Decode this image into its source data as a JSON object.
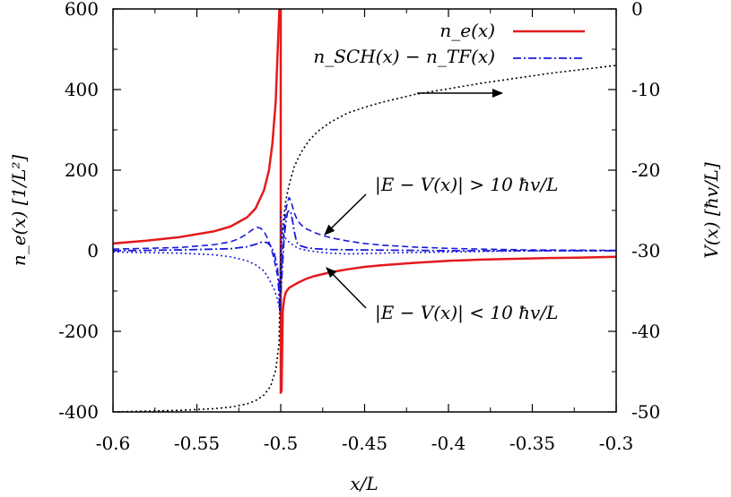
{
  "chart_data": {
    "type": "line",
    "x_axis": {
      "label": "x/L",
      "range": [
        -0.6,
        -0.3
      ],
      "ticks": [
        -0.6,
        -0.55,
        -0.5,
        -0.45,
        -0.4,
        -0.35,
        -0.3
      ],
      "tick_labels": [
        "-0.6",
        "-0.55",
        "-0.5",
        "-0.45",
        "-0.4",
        "-0.35",
        "-0.3"
      ]
    },
    "y_left_axis": {
      "label": "n_e(x) [1/L²]",
      "range": [
        -400,
        600
      ],
      "ticks": [
        -400,
        -200,
        0,
        200,
        400,
        600
      ],
      "tick_labels": [
        "-400",
        "-200",
        "0",
        "200",
        "400",
        "600"
      ]
    },
    "y_right_axis": {
      "label": "V(x) [ħv/L]",
      "range": [
        -50,
        0
      ],
      "ticks": [
        -50,
        -40,
        -30,
        -20,
        -10,
        0
      ],
      "tick_labels": [
        "-50",
        "-40",
        "-30",
        "-20",
        "-10",
        "0"
      ]
    },
    "grid": false,
    "legend_position": "top-right",
    "legend": [
      {
        "label": "n_e(x)",
        "color": "#e41a1c",
        "style": "solid"
      },
      {
        "label": "n_SCH(x) − n_TF(x)",
        "color": "#1a1adb",
        "style": "dash-dot"
      }
    ],
    "annotations": [
      {
        "text": "|E − V(x)| > 10 ħv/L"
      },
      {
        "text": "|E − V(x)| < 10 ħv/L"
      }
    ],
    "series": [
      {
        "name": "n_e(x)",
        "axis": "left",
        "color": "#e41a1c",
        "style": "solid",
        "segments": [
          {
            "x": [
              -0.6,
              -0.58,
              -0.56,
              -0.54,
              -0.53,
              -0.52,
              -0.515,
              -0.51,
              -0.507,
              -0.505,
              -0.503,
              -0.5015,
              -0.5008
            ],
            "y": [
              18,
              25,
              34,
              48,
              60,
              83,
              105,
              150,
              200,
              265,
              370,
              530,
              600
            ]
          },
          {
            "x": [
              -0.4995,
              -0.4988,
              -0.498,
              -0.497,
              -0.495,
              -0.49,
              -0.485,
              -0.48,
              -0.47,
              -0.46,
              -0.45,
              -0.44,
              -0.42,
              -0.4,
              -0.38,
              -0.36,
              -0.34,
              -0.32,
              -0.3
            ],
            "y": [
              -350,
              -150,
              -120,
              -103,
              -92,
              -80,
              -70,
              -63,
              -53,
              -46,
              -40,
              -36,
              -30,
              -25,
              -22,
              -20,
              -18,
              -17,
              -15
            ]
          }
        ],
        "spike": {
          "x": -0.5,
          "y_low": -355,
          "y_high": 600
        }
      },
      {
        "name": "n_SCH(x) − n_TF(x)",
        "axis": "left",
        "color": "#1a1adb",
        "style": "dash-dot",
        "x": [
          -0.6,
          -0.56,
          -0.53,
          -0.52,
          -0.515,
          -0.511,
          -0.508,
          -0.506,
          -0.504,
          -0.502,
          -0.5005,
          -0.499,
          -0.498,
          -0.497,
          -0.496,
          -0.495,
          -0.494,
          -0.493,
          -0.492,
          -0.491,
          -0.49,
          -0.488,
          -0.485,
          -0.48,
          -0.47,
          -0.45,
          -0.4,
          -0.35,
          -0.3
        ],
        "y": [
          0,
          2,
          5,
          10,
          16,
          22,
          20,
          12,
          -5,
          -40,
          -150,
          -40,
          30,
          70,
          95,
          100,
          95,
          75,
          50,
          30,
          18,
          12,
          8,
          5,
          3,
          2,
          0,
          0,
          0
        ]
      },
      {
        "name": "|E − V(x)| > 10 ħv/L",
        "axis": "left",
        "color": "#1a1adb",
        "style": "dashed",
        "x": [
          -0.6,
          -0.56,
          -0.54,
          -0.53,
          -0.525,
          -0.52,
          -0.517,
          -0.514,
          -0.512,
          -0.51,
          -0.508,
          -0.506,
          -0.504,
          -0.502,
          -0.5,
          -0.4995,
          -0.498,
          -0.497,
          -0.496,
          -0.495,
          -0.494,
          -0.493,
          -0.492,
          -0.49,
          -0.488,
          -0.485,
          -0.48,
          -0.475,
          -0.47,
          -0.46,
          -0.45,
          -0.44,
          -0.42,
          -0.4,
          -0.38,
          -0.35,
          -0.3
        ],
        "y": [
          4,
          8,
          15,
          22,
          30,
          42,
          52,
          58,
          56,
          48,
          32,
          10,
          -20,
          -60,
          -95,
          -40,
          60,
          100,
          120,
          132,
          125,
          110,
          95,
          75,
          65,
          55,
          45,
          38,
          32,
          24,
          18,
          14,
          9,
          6,
          4,
          2,
          1
        ]
      },
      {
        "name": "|E − V(x)| < 10 ħv/L",
        "axis": "left",
        "color": "#1a1adb",
        "style": "dotted",
        "x": [
          -0.6,
          -0.56,
          -0.54,
          -0.53,
          -0.52,
          -0.515,
          -0.51,
          -0.507,
          -0.504,
          -0.502,
          -0.5005,
          -0.5,
          -0.4995,
          -0.499,
          -0.498,
          -0.496,
          -0.494,
          -0.492,
          -0.49,
          -0.487,
          -0.483,
          -0.478,
          -0.47,
          -0.46,
          -0.45,
          -0.43,
          -0.4,
          -0.37,
          -0.34,
          -0.3
        ],
        "y": [
          -3,
          -6,
          -10,
          -15,
          -25,
          -35,
          -50,
          -70,
          -95,
          -120,
          -150,
          100,
          60,
          45,
          35,
          25,
          18,
          12,
          7,
          3,
          0,
          -3,
          -6,
          -8,
          -7,
          -5,
          -3,
          -1,
          0,
          0
        ]
      },
      {
        "name": "V(x)",
        "axis": "right",
        "color": "#000000",
        "style": "dotted",
        "x": [
          -0.6,
          -0.58,
          -0.56,
          -0.54,
          -0.53,
          -0.52,
          -0.515,
          -0.51,
          -0.506,
          -0.503,
          -0.501,
          -0.5,
          -0.499,
          -0.497,
          -0.495,
          -0.492,
          -0.49,
          -0.487,
          -0.483,
          -0.478,
          -0.47,
          -0.46,
          -0.45,
          -0.44,
          -0.43,
          -0.42,
          -0.4,
          -0.38,
          -0.36,
          -0.34,
          -0.32,
          -0.3
        ],
        "y": [
          -50,
          -49.9,
          -49.8,
          -49.6,
          -49.4,
          -49.0,
          -48.6,
          -47.9,
          -46.8,
          -44.8,
          -41.5,
          -30,
          -27.3,
          -23.8,
          -21.8,
          -19.6,
          -18.7,
          -17.5,
          -16.3,
          -15.2,
          -14.0,
          -12.9,
          -12.2,
          -11.6,
          -11.1,
          -10.6,
          -9.9,
          -9.2,
          -8.6,
          -8.0,
          -7.5,
          -7.0
        ]
      }
    ]
  }
}
